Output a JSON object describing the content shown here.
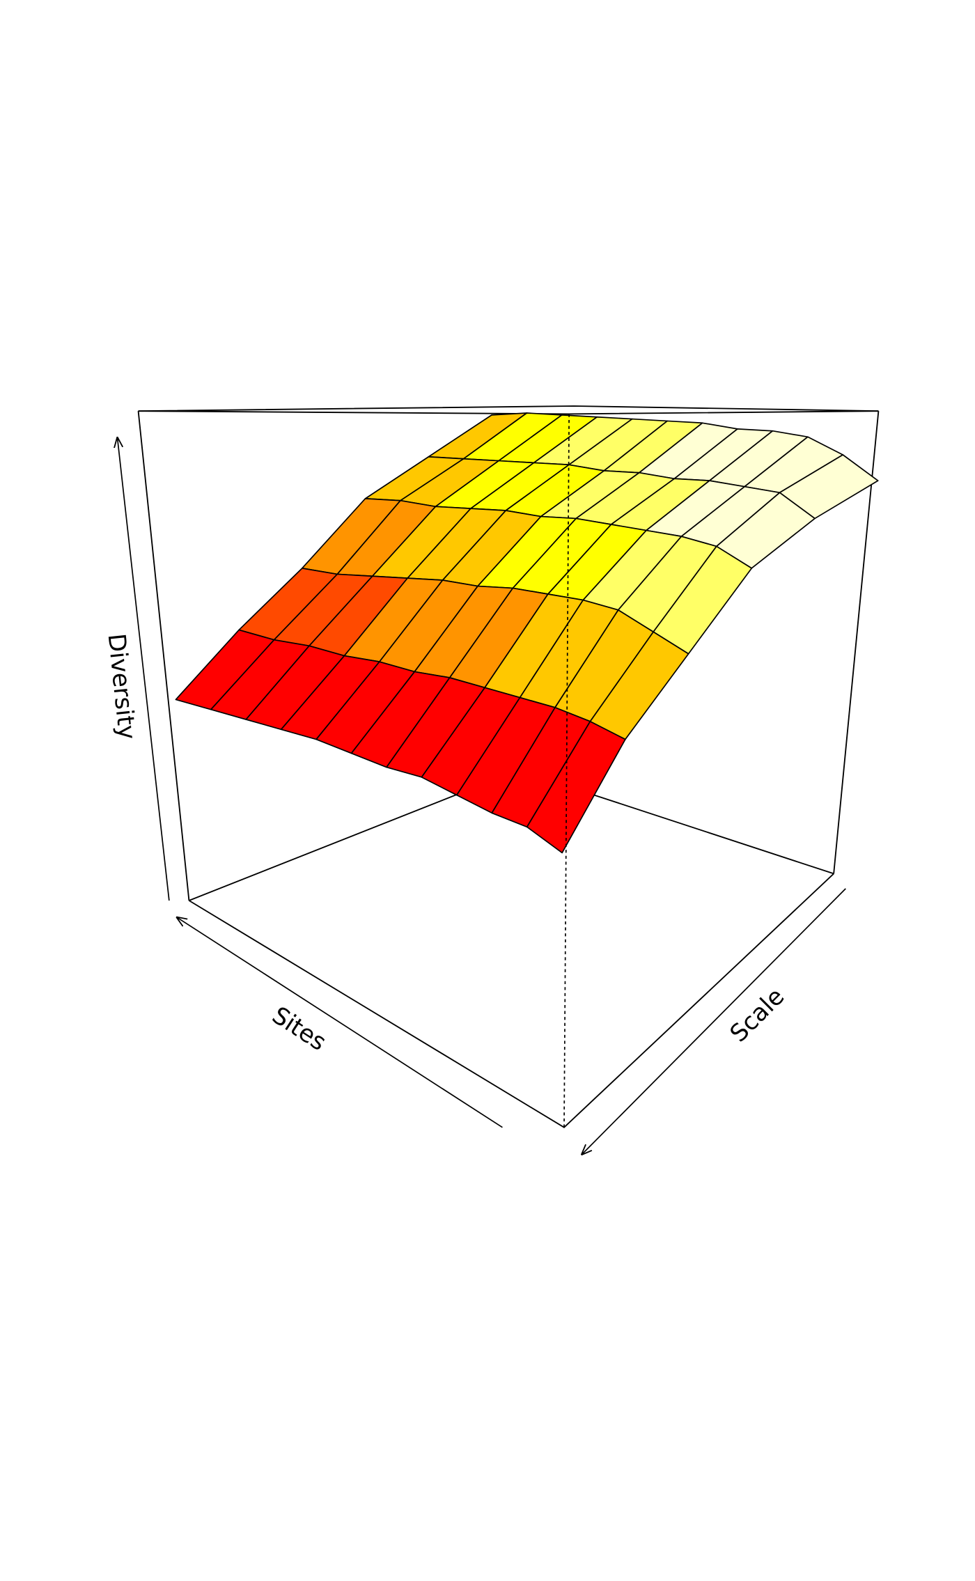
{
  "chart_data": {
    "type": "surface",
    "xlabel": "Sites",
    "ylabel": "Scale",
    "zlabel": "Diversity",
    "colors": [
      "#ff0000",
      "#ff4a00",
      "#ff9400",
      "#ffc800",
      "#ffff00",
      "#ffff66",
      "#ffffd4"
    ],
    "z": [
      [
        0.2,
        0.23,
        0.23,
        0.24,
        0.25,
        0.24,
        0.24,
        0.24,
        0.23,
        0.22,
        0.21,
        0.2
      ],
      [
        0.41,
        0.42,
        0.42,
        0.41,
        0.4,
        0.39,
        0.37,
        0.36,
        0.34,
        0.33,
        0.31,
        0.3
      ],
      [
        0.55,
        0.57,
        0.59,
        0.58,
        0.56,
        0.54,
        0.51,
        0.49,
        0.46,
        0.43,
        0.4,
        0.38
      ],
      [
        0.69,
        0.71,
        0.7,
        0.68,
        0.66,
        0.64,
        0.61,
        0.59,
        0.56,
        0.53,
        0.51,
        0.48
      ],
      [
        0.74,
        0.77,
        0.75,
        0.73,
        0.7,
        0.68,
        0.65,
        0.63,
        0.6,
        0.57,
        0.54,
        0.51
      ],
      [
        0.76,
        0.79,
        0.8,
        0.78,
        0.75,
        0.73,
        0.7,
        0.67,
        0.64,
        0.61,
        0.58,
        0.54
      ]
    ]
  }
}
